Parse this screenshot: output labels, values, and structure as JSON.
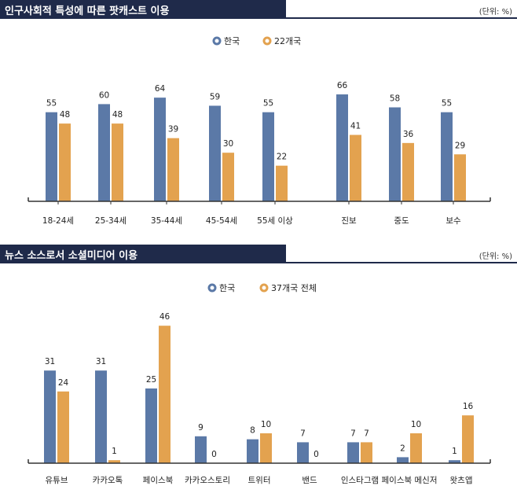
{
  "colors": {
    "header_bg": "#1f2a4a",
    "series_a": "#5b79a7",
    "series_b": "#e3a24f",
    "axis": "#333333",
    "text": "#222222"
  },
  "chart_data": [
    {
      "type": "bar",
      "title": "인구사회적 특성에 따른 팟캐스트 이용",
      "unit": "(단위: %)",
      "categories": [
        "18-24세",
        "25-34세",
        "35-44세",
        "45-54세",
        "55세 이상",
        "진보",
        "중도",
        "보수"
      ],
      "series": [
        {
          "name": "한국",
          "values": [
            55,
            60,
            64,
            59,
            55,
            66,
            58,
            55
          ]
        },
        {
          "name": "22개국",
          "values": [
            48,
            48,
            39,
            30,
            22,
            41,
            36,
            29
          ]
        }
      ],
      "ylim": [
        0,
        70
      ],
      "grid": false,
      "legend": "top-center"
    },
    {
      "type": "bar",
      "title": "뉴스 소스로서 소셜미디어 이용",
      "unit": "(단위: %)",
      "categories": [
        "유튜브",
        "카카오톡",
        "페이스북",
        "카카오스토리",
        "트위터",
        "밴드",
        "인스타그램",
        "페이스북 메신저",
        "왓츠앱"
      ],
      "series": [
        {
          "name": "한국",
          "values": [
            31,
            31,
            25,
            9,
            8,
            7,
            7,
            2,
            1
          ]
        },
        {
          "name": "37개국 전체",
          "values": [
            24,
            1,
            46,
            0,
            10,
            0,
            7,
            10,
            16
          ]
        }
      ],
      "ylim": [
        0,
        50
      ],
      "grid": false,
      "legend": "top-center"
    }
  ]
}
